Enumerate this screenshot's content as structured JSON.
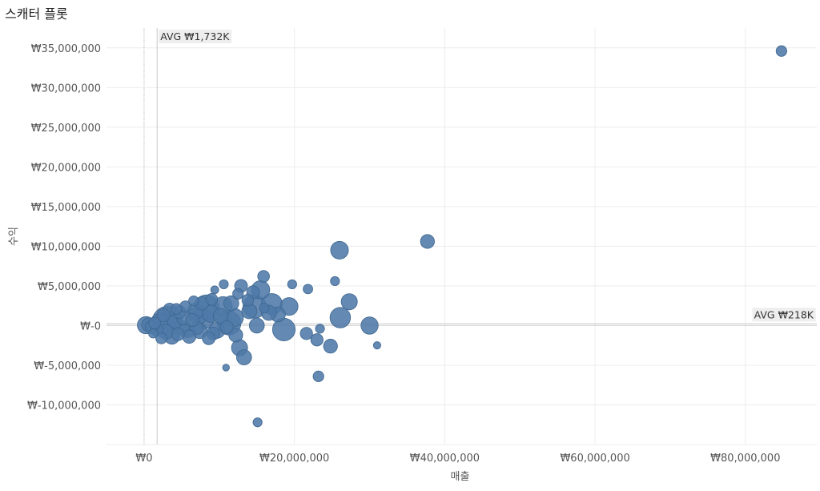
{
  "page": {
    "title": "스캐터 플롯"
  },
  "chart_data": {
    "type": "scatter",
    "title": "스캐터 플롯",
    "xlabel": "매출",
    "ylabel": "수익",
    "xlim": [
      -5000000,
      89500000
    ],
    "ylim": [
      -15000000,
      37500000
    ],
    "grid": true,
    "x_ticks": [
      0,
      20000000,
      40000000,
      60000000,
      80000000
    ],
    "x_tick_labels": [
      "₩0",
      "₩20,000,000",
      "₩40,000,000",
      "₩60,000,000",
      "₩80,000,000"
    ],
    "y_ticks": [
      35000000,
      30000000,
      25000000,
      20000000,
      15000000,
      10000000,
      5000000,
      0,
      -5000000,
      -10000000
    ],
    "y_tick_labels": [
      "₩35,000,000",
      "₩30,000,000",
      "₩25,000,000",
      "₩20,000,000",
      "₩15,000,000",
      "₩10,000,000",
      "₩5,000,000",
      "₩-0",
      "₩-5,000,000",
      "₩-10,000,000"
    ],
    "reference_lines": [
      {
        "axis": "x",
        "value": 1732000,
        "label": "AVG ₩1,732K"
      },
      {
        "axis": "y",
        "value": 218000,
        "label": "AVG ₩218K"
      }
    ],
    "colors": {
      "marker": "#4e79a7",
      "marker_stroke": "#3d6690",
      "grid": "#ececec",
      "ref_line": "#c8c8c8",
      "ref_label_bg": "#eeeeee"
    },
    "series": [
      {
        "points": [
          {
            "x": 84800000,
            "y": 34600000,
            "size": 1.2
          },
          {
            "x": 37700000,
            "y": 10600000,
            "size": 1.8
          },
          {
            "x": 26000000,
            "y": 9500000,
            "size": 2.5
          },
          {
            "x": 27300000,
            "y": 3000000,
            "size": 2.2
          },
          {
            "x": 26100000,
            "y": 1000000,
            "size": 3.0
          },
          {
            "x": 30000000,
            "y": 0,
            "size": 2.4
          },
          {
            "x": 31000000,
            "y": -2500000,
            "size": 0.6
          },
          {
            "x": 25400000,
            "y": 5600000,
            "size": 0.9
          },
          {
            "x": 23400000,
            "y": -400000,
            "size": 0.9
          },
          {
            "x": 24800000,
            "y": -2600000,
            "size": 1.8
          },
          {
            "x": 23000000,
            "y": -1800000,
            "size": 1.5
          },
          {
            "x": 23200000,
            "y": -6400000,
            "size": 1.2
          },
          {
            "x": 21600000,
            "y": -1000000,
            "size": 1.5
          },
          {
            "x": 21800000,
            "y": 4600000,
            "size": 1.0
          },
          {
            "x": 19700000,
            "y": 5200000,
            "size": 0.9
          },
          {
            "x": 19300000,
            "y": 2400000,
            "size": 2.5
          },
          {
            "x": 18600000,
            "y": -500000,
            "size": 3.4
          },
          {
            "x": 17800000,
            "y": 1400000,
            "size": 2.0
          },
          {
            "x": 17000000,
            "y": 2700000,
            "size": 3.1
          },
          {
            "x": 16600000,
            "y": 1600000,
            "size": 2.0
          },
          {
            "x": 15900000,
            "y": 6200000,
            "size": 1.4
          },
          {
            "x": 15500000,
            "y": 4500000,
            "size": 2.6
          },
          {
            "x": 15100000,
            "y": -12200000,
            "size": 0.9
          },
          {
            "x": 15000000,
            "y": 0,
            "size": 2.0
          },
          {
            "x": 14500000,
            "y": 4200000,
            "size": 1.6
          },
          {
            "x": 14700000,
            "y": 2400000,
            "size": 3.5
          },
          {
            "x": 14000000,
            "y": 1800000,
            "size": 2.0
          },
          {
            "x": 13800000,
            "y": 3200000,
            "size": 1.4
          },
          {
            "x": 13300000,
            "y": -4000000,
            "size": 2.0
          },
          {
            "x": 12700000,
            "y": -2800000,
            "size": 2.2
          },
          {
            "x": 12900000,
            "y": 5000000,
            "size": 1.6
          },
          {
            "x": 12500000,
            "y": 4000000,
            "size": 1.2
          },
          {
            "x": 12200000,
            "y": -1200000,
            "size": 1.8
          },
          {
            "x": 12000000,
            "y": 1000000,
            "size": 2.6
          },
          {
            "x": 11600000,
            "y": 2800000,
            "size": 2.0
          },
          {
            "x": 11300000,
            "y": 300000,
            "size": 3.6
          },
          {
            "x": 10900000,
            "y": -5300000,
            "size": 0.5
          },
          {
            "x": 10600000,
            "y": 5200000,
            "size": 0.9
          },
          {
            "x": 10500000,
            "y": 2500000,
            "size": 2.6
          },
          {
            "x": 10200000,
            "y": 1200000,
            "size": 2.0
          },
          {
            "x": 9700000,
            "y": -600000,
            "size": 2.2
          },
          {
            "x": 9400000,
            "y": 4500000,
            "size": 0.7
          },
          {
            "x": 9200000,
            "y": -1000000,
            "size": 1.6
          },
          {
            "x": 8900000,
            "y": 1500000,
            "size": 2.4
          },
          {
            "x": 8600000,
            "y": -1600000,
            "size": 1.6
          },
          {
            "x": 8300000,
            "y": 2300000,
            "size": 3.8
          },
          {
            "x": 8000000,
            "y": 800000,
            "size": 2.8
          },
          {
            "x": 7700000,
            "y": 2800000,
            "size": 1.7
          },
          {
            "x": 7400000,
            "y": -700000,
            "size": 2.0
          },
          {
            "x": 7000000,
            "y": -300000,
            "size": 1.7
          },
          {
            "x": 6800000,
            "y": 1800000,
            "size": 2.2
          },
          {
            "x": 6400000,
            "y": 700000,
            "size": 1.6
          },
          {
            "x": 6000000,
            "y": -1400000,
            "size": 1.7
          },
          {
            "x": 5800000,
            "y": -600000,
            "size": 2.0
          },
          {
            "x": 5500000,
            "y": 2400000,
            "size": 1.3
          },
          {
            "x": 5300000,
            "y": 1000000,
            "size": 1.9
          },
          {
            "x": 5000000,
            "y": -300000,
            "size": 2.0
          },
          {
            "x": 4700000,
            "y": 1700000,
            "size": 1.6
          },
          {
            "x": 4500000,
            "y": -1100000,
            "size": 1.6
          },
          {
            "x": 4100000,
            "y": 600000,
            "size": 2.0
          },
          {
            "x": 3700000,
            "y": -1400000,
            "size": 2.0
          },
          {
            "x": 3400000,
            "y": 2000000,
            "size": 1.6
          },
          {
            "x": 3200000,
            "y": 700000,
            "size": 2.4
          },
          {
            "x": 2900000,
            "y": -800000,
            "size": 2.0
          },
          {
            "x": 2600000,
            "y": 1300000,
            "size": 1.6
          },
          {
            "x": 2300000,
            "y": -1600000,
            "size": 1.3
          },
          {
            "x": 3100000,
            "y": 500000,
            "size": 4.8
          },
          {
            "x": 2000000,
            "y": 400000,
            "size": 2.4
          },
          {
            "x": 1700000,
            "y": -500000,
            "size": 1.6
          },
          {
            "x": 1400000,
            "y": 300000,
            "size": 1.4
          },
          {
            "x": 1000000,
            "y": -200000,
            "size": 1.6
          },
          {
            "x": 600000,
            "y": 100000,
            "size": 1.8
          },
          {
            "x": 250000,
            "y": 50000,
            "size": 2.4
          },
          {
            "x": 1200000,
            "y": -1000000,
            "size": 0.9
          },
          {
            "x": 6600000,
            "y": 3100000,
            "size": 1.1
          },
          {
            "x": 9000000,
            "y": 3300000,
            "size": 1.4
          },
          {
            "x": 11000000,
            "y": -200000,
            "size": 1.6
          },
          {
            "x": 16000000,
            "y": 2200000,
            "size": 1.0
          },
          {
            "x": 7200000,
            "y": 1300000,
            "size": 2.6
          },
          {
            "x": 4300000,
            "y": 2100000,
            "size": 1.2
          }
        ]
      }
    ]
  }
}
